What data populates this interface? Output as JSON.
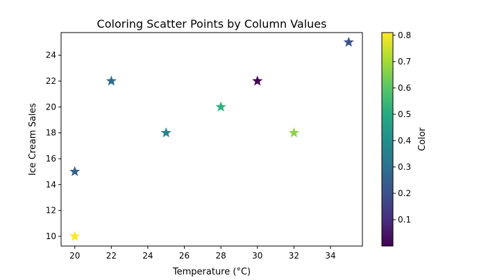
{
  "chart_data": {
    "type": "scatter",
    "title": "Coloring Scatter Points by Column Values",
    "xlabel": "Temperature (°C)",
    "ylabel": "Ice Cream Sales",
    "xlim": [
      19.25,
      35.75
    ],
    "ylim": [
      9.25,
      25.75
    ],
    "xticks": [
      20,
      22,
      24,
      26,
      28,
      30,
      32,
      34
    ],
    "yticks": [
      10,
      12,
      14,
      16,
      18,
      20,
      22,
      24
    ],
    "grid": false,
    "marker": "star",
    "colormap": "viridis",
    "colorbar": {
      "label": "Color",
      "range": [
        0.0,
        0.81
      ],
      "ticks": [
        0.1,
        0.2,
        0.3,
        0.4,
        0.5,
        0.6,
        0.7,
        0.8
      ]
    },
    "points": [
      {
        "x": 20,
        "y": 15,
        "c": 0.25
      },
      {
        "x": 22,
        "y": 22,
        "c": 0.29
      },
      {
        "x": 25,
        "y": 18,
        "c": 0.37
      },
      {
        "x": 28,
        "y": 20,
        "c": 0.52
      },
      {
        "x": 30,
        "y": 22,
        "c": 0.0
      },
      {
        "x": 32,
        "y": 18,
        "c": 0.67
      },
      {
        "x": 35,
        "y": 25,
        "c": 0.2
      },
      {
        "x": 20,
        "y": 10,
        "c": 0.81
      }
    ]
  }
}
